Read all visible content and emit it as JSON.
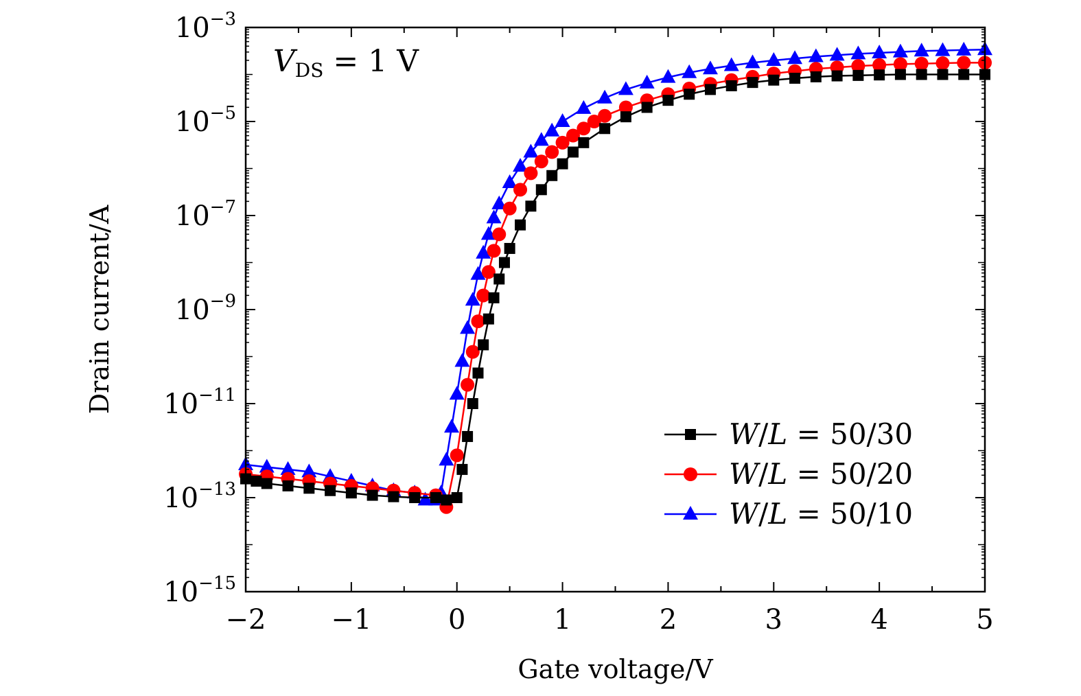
{
  "chart_data": {
    "type": "scatter",
    "title": "",
    "xlabel": "Gate voltage/V",
    "ylabel": "Drain current/A",
    "xlim": [
      -2,
      5
    ],
    "ylim_log10": [
      -15,
      -3
    ],
    "y_scale": "log",
    "x_ticks": [
      -2,
      -1,
      0,
      1,
      2,
      3,
      4,
      5
    ],
    "x_tick_labels": [
      "−2",
      "−1",
      "0",
      "1",
      "2",
      "3",
      "4",
      "5"
    ],
    "y_ticks_log10": [
      -15,
      -13,
      -11,
      -9,
      -7,
      -5,
      -3
    ],
    "y_tick_base": "10",
    "y_tick_exponents": [
      "−15",
      "−13",
      "−11",
      "−9",
      "−7",
      "−5",
      "−3"
    ],
    "annotation": {
      "var": "V",
      "sub": "DS",
      "text": " = 1 V"
    },
    "legend_position": "lower-right",
    "series": [
      {
        "name": "W/L = 50/30",
        "legend": {
          "w": "W",
          "l": "L",
          "value": " = 50/30"
        },
        "color": "#000000",
        "marker": "square",
        "x": [
          -2.0,
          -1.9,
          -1.8,
          -1.6,
          -1.4,
          -1.2,
          -1.0,
          -0.8,
          -0.6,
          -0.4,
          -0.2,
          -0.1,
          0.0,
          0.05,
          0.1,
          0.15,
          0.2,
          0.25,
          0.3,
          0.35,
          0.4,
          0.45,
          0.5,
          0.6,
          0.7,
          0.8,
          0.9,
          1.0,
          1.1,
          1.2,
          1.4,
          1.6,
          1.8,
          2.0,
          2.2,
          2.4,
          2.6,
          2.8,
          3.0,
          3.2,
          3.4,
          3.6,
          3.8,
          4.0,
          4.2,
          4.4,
          4.6,
          4.8,
          5.0
        ],
        "log10_y": [
          -12.6,
          -12.65,
          -12.7,
          -12.75,
          -12.8,
          -12.85,
          -12.9,
          -12.95,
          -12.98,
          -13.0,
          -13.0,
          -13.05,
          -13.0,
          -12.4,
          -11.7,
          -11.0,
          -10.35,
          -9.75,
          -9.2,
          -8.75,
          -8.35,
          -8.0,
          -7.7,
          -7.2,
          -6.8,
          -6.45,
          -6.15,
          -5.9,
          -5.65,
          -5.45,
          -5.15,
          -4.9,
          -4.7,
          -4.55,
          -4.42,
          -4.32,
          -4.24,
          -4.17,
          -4.12,
          -4.08,
          -4.05,
          -4.03,
          -4.02,
          -4.01,
          -4.0,
          -4.0,
          -4.0,
          -4.0,
          -4.0
        ]
      },
      {
        "name": "W/L = 50/20",
        "legend": {
          "w": "W",
          "l": "L",
          "value": " = 50/20"
        },
        "color": "#ff0000",
        "marker": "circle",
        "x": [
          -2.0,
          -1.8,
          -1.6,
          -1.4,
          -1.2,
          -1.0,
          -0.8,
          -0.6,
          -0.4,
          -0.2,
          -0.1,
          0.0,
          0.1,
          0.15,
          0.2,
          0.25,
          0.3,
          0.35,
          0.4,
          0.5,
          0.6,
          0.7,
          0.8,
          0.9,
          1.0,
          1.1,
          1.2,
          1.3,
          1.4,
          1.6,
          1.8,
          2.0,
          2.2,
          2.4,
          2.6,
          2.8,
          3.0,
          3.2,
          3.4,
          3.6,
          3.8,
          4.0,
          4.2,
          4.4,
          4.6,
          4.8,
          5.0
        ],
        "log10_y": [
          -12.5,
          -12.55,
          -12.6,
          -12.65,
          -12.7,
          -12.75,
          -12.8,
          -12.85,
          -12.9,
          -12.95,
          -13.2,
          -12.1,
          -10.6,
          -9.9,
          -9.25,
          -8.7,
          -8.2,
          -7.75,
          -7.4,
          -6.85,
          -6.45,
          -6.1,
          -5.85,
          -5.65,
          -5.45,
          -5.3,
          -5.15,
          -5.0,
          -4.88,
          -4.7,
          -4.55,
          -4.42,
          -4.3,
          -4.2,
          -4.12,
          -4.05,
          -3.98,
          -3.93,
          -3.88,
          -3.85,
          -3.82,
          -3.8,
          -3.78,
          -3.77,
          -3.76,
          -3.75,
          -3.75
        ]
      },
      {
        "name": "W/L = 50/10",
        "legend": {
          "w": "W",
          "l": "L",
          "value": " = 50/10"
        },
        "color": "#0000ff",
        "marker": "triangle",
        "x": [
          -2.0,
          -1.8,
          -1.6,
          -1.4,
          -1.2,
          -1.0,
          -0.8,
          -0.6,
          -0.4,
          -0.3,
          -0.2,
          -0.15,
          -0.1,
          -0.05,
          0.0,
          0.05,
          0.1,
          0.15,
          0.2,
          0.25,
          0.3,
          0.35,
          0.4,
          0.5,
          0.6,
          0.7,
          0.8,
          0.9,
          1.0,
          1.2,
          1.4,
          1.6,
          1.8,
          2.0,
          2.2,
          2.4,
          2.6,
          2.8,
          3.0,
          3.2,
          3.4,
          3.6,
          3.8,
          4.0,
          4.2,
          4.4,
          4.6,
          4.8,
          5.0
        ],
        "log10_y": [
          -12.3,
          -12.35,
          -12.4,
          -12.45,
          -12.55,
          -12.65,
          -12.75,
          -12.85,
          -12.9,
          -13.05,
          -13.05,
          -12.9,
          -12.2,
          -11.5,
          -10.8,
          -10.1,
          -9.4,
          -8.8,
          -8.25,
          -7.8,
          -7.4,
          -7.05,
          -6.75,
          -6.3,
          -5.95,
          -5.65,
          -5.4,
          -5.2,
          -5.0,
          -4.72,
          -4.5,
          -4.32,
          -4.18,
          -4.06,
          -3.96,
          -3.88,
          -3.81,
          -3.75,
          -3.7,
          -3.66,
          -3.62,
          -3.59,
          -3.56,
          -3.54,
          -3.52,
          -3.5,
          -3.49,
          -3.48,
          -3.47
        ]
      }
    ]
  }
}
